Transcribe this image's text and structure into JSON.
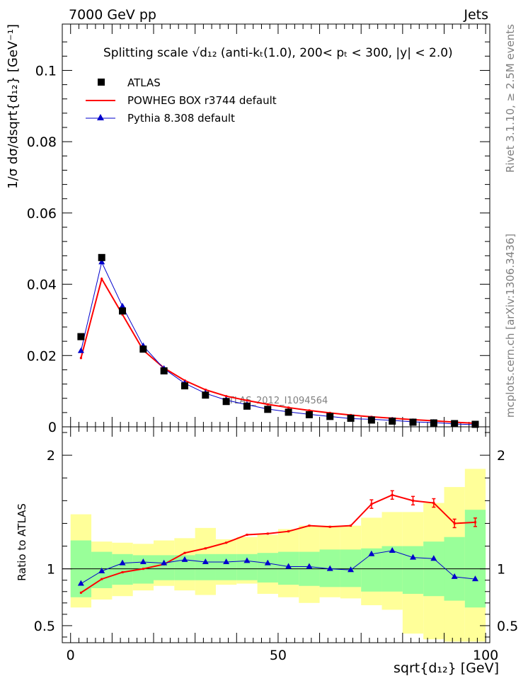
{
  "header": {
    "left": "7000 GeV pp",
    "right": "Jets"
  },
  "side_text": {
    "top": "Rivet 3.1.10, ≥ 2.5M events",
    "bottom": "mcplots.cern.ch [arXiv:1306.3436]"
  },
  "plot_title": "Splitting scale √d₁₂ (anti-kₜ(1.0), 200< pₜ < 300, |y| < 2.0)",
  "watermark": "ATLAS_2012_I1094564",
  "legend": {
    "atlas": "ATLAS",
    "powheg": "POWHEG BOX r3744 default",
    "pythia": "Pythia 8.308 default"
  },
  "colors": {
    "atlas": "#000000",
    "powheg": "#ff0000",
    "pythia": "#0000cc",
    "band_inner": "#99ff99",
    "band_outer": "#ffff99"
  },
  "chart_data": [
    {
      "type": "scatter",
      "ylabel": "1/σ dσ/dsqrt{d₁₂} [GeV⁻¹]",
      "xlim": [
        -2,
        101
      ],
      "ylim": [
        0,
        0.113
      ],
      "y_ticks": [
        "0",
        "0.02",
        "0.04",
        "0.06",
        "0.08",
        "0.1"
      ],
      "x": [
        2.5,
        7.5,
        12.5,
        17.5,
        22.5,
        27.5,
        32.5,
        37.5,
        42.5,
        47.5,
        52.5,
        57.5,
        62.5,
        67.5,
        72.5,
        77.5,
        82.5,
        87.5,
        92.5,
        97.5
      ],
      "series": [
        {
          "name": "ATLAS",
          "style": "square",
          "values": [
            0.0253,
            0.0475,
            0.0325,
            0.0218,
            0.0157,
            0.0115,
            0.0089,
            0.0071,
            0.0058,
            0.0049,
            0.0041,
            0.0034,
            0.0029,
            0.0024,
            0.0019,
            0.0016,
            0.0013,
            0.0011,
            0.0009,
            0.0007
          ]
        },
        {
          "name": "POWHEG BOX r3744 default",
          "style": "line",
          "values": [
            0.0193,
            0.0415,
            0.0315,
            0.0215,
            0.0165,
            0.013,
            0.0104,
            0.0086,
            0.0074,
            0.0063,
            0.0054,
            0.0046,
            0.0039,
            0.0033,
            0.0028,
            0.0024,
            0.002,
            0.0017,
            0.0013,
            0.001
          ]
        },
        {
          "name": "Pythia 8.308 default",
          "style": "triangle-line",
          "values": [
            0.0213,
            0.0462,
            0.0338,
            0.0227,
            0.0163,
            0.0122,
            0.0094,
            0.0075,
            0.0062,
            0.005,
            0.0042,
            0.0035,
            0.0029,
            0.0023,
            0.0021,
            0.0018,
            0.0014,
            0.0012,
            0.0008,
            0.0006
          ]
        }
      ]
    },
    {
      "type": "line",
      "ylabel": "Ratio to ATLAS",
      "xlabel": "sqrt{d₁₂} [GeV]",
      "xlim": [
        -2,
        101
      ],
      "ylim": [
        0.35,
        2.25
      ],
      "y_ticks": [
        "0.5",
        "1",
        "2"
      ],
      "x_ticks": [
        "0",
        "50",
        "100"
      ],
      "x": [
        2.5,
        7.5,
        12.5,
        17.5,
        22.5,
        27.5,
        32.5,
        37.5,
        42.5,
        47.5,
        52.5,
        57.5,
        62.5,
        67.5,
        72.5,
        77.5,
        82.5,
        87.5,
        92.5,
        97.5
      ],
      "band_inner": {
        "low": [
          0.75,
          0.83,
          0.86,
          0.87,
          0.9,
          0.9,
          0.9,
          0.9,
          0.9,
          0.88,
          0.86,
          0.85,
          0.84,
          0.84,
          0.8,
          0.8,
          0.78,
          0.76,
          0.72,
          0.66
        ],
        "high": [
          1.25,
          1.15,
          1.13,
          1.12,
          1.12,
          1.12,
          1.13,
          1.13,
          1.13,
          1.14,
          1.15,
          1.15,
          1.17,
          1.17,
          1.18,
          1.2,
          1.2,
          1.24,
          1.28,
          1.52
        ]
      },
      "band_outer": {
        "low": [
          0.66,
          0.73,
          0.76,
          0.81,
          0.85,
          0.81,
          0.77,
          0.86,
          0.87,
          0.78,
          0.75,
          0.7,
          0.75,
          0.74,
          0.68,
          0.64,
          0.43,
          0.38,
          0.36,
          0.36
        ],
        "high": [
          1.48,
          1.24,
          1.23,
          1.22,
          1.25,
          1.27,
          1.36,
          1.26,
          1.28,
          1.3,
          1.35,
          1.38,
          1.38,
          1.38,
          1.45,
          1.5,
          1.5,
          1.58,
          1.72,
          1.88
        ]
      },
      "series": [
        {
          "name": "POWHEG BOX r3744 default",
          "values": [
            0.79,
            0.91,
            0.97,
            1.0,
            1.04,
            1.14,
            1.18,
            1.23,
            1.3,
            1.31,
            1.33,
            1.38,
            1.37,
            1.38,
            1.57,
            1.65,
            1.6,
            1.58,
            1.4,
            1.41
          ]
        },
        {
          "name": "Pythia 8.308 default",
          "values": [
            0.87,
            0.98,
            1.05,
            1.06,
            1.05,
            1.08,
            1.06,
            1.06,
            1.07,
            1.05,
            1.02,
            1.02,
            1.0,
            0.99,
            1.13,
            1.16,
            1.1,
            1.09,
            0.93,
            0.91
          ]
        }
      ]
    }
  ]
}
